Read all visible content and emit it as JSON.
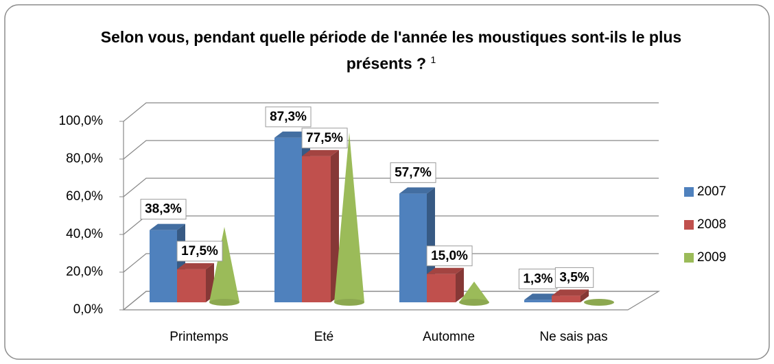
{
  "chart_data": {
    "type": "bar3d",
    "title": "Selon vous, pendant quelle période de l'année les moustiques sont-ils le plus présents ?",
    "title_note": "1",
    "categories": [
      "Printemps",
      "Eté",
      "Automne",
      "Ne sais pas"
    ],
    "series": [
      {
        "name": "2007",
        "color": "#4f81bd",
        "shape": "box",
        "values": [
          38.3,
          87.3,
          57.7,
          1.3
        ],
        "value_labels": [
          "38,3%",
          "87,3%",
          "57,7%",
          "1,3%"
        ]
      },
      {
        "name": "2008",
        "color": "#c0504d",
        "shape": "box",
        "values": [
          17.5,
          77.5,
          15.0,
          3.5
        ],
        "value_labels": [
          "17,5%",
          "77,5%",
          "15,0%",
          "3,5%"
        ]
      },
      {
        "name": "2009",
        "color": "#9bbb59",
        "shape": "cone",
        "values": [
          40,
          90,
          11,
          0
        ]
      }
    ],
    "ylim": [
      0,
      100
    ],
    "yticks": [
      {
        "value": 0,
        "label": "0,0%"
      },
      {
        "value": 20,
        "label": "20,0%"
      },
      {
        "value": 40,
        "label": "40,0%"
      },
      {
        "value": 60,
        "label": "60,0%"
      },
      {
        "value": 80,
        "label": "80,0%"
      },
      {
        "value": 100,
        "label": "100,0%"
      }
    ],
    "grid": true,
    "legend": "right"
  }
}
